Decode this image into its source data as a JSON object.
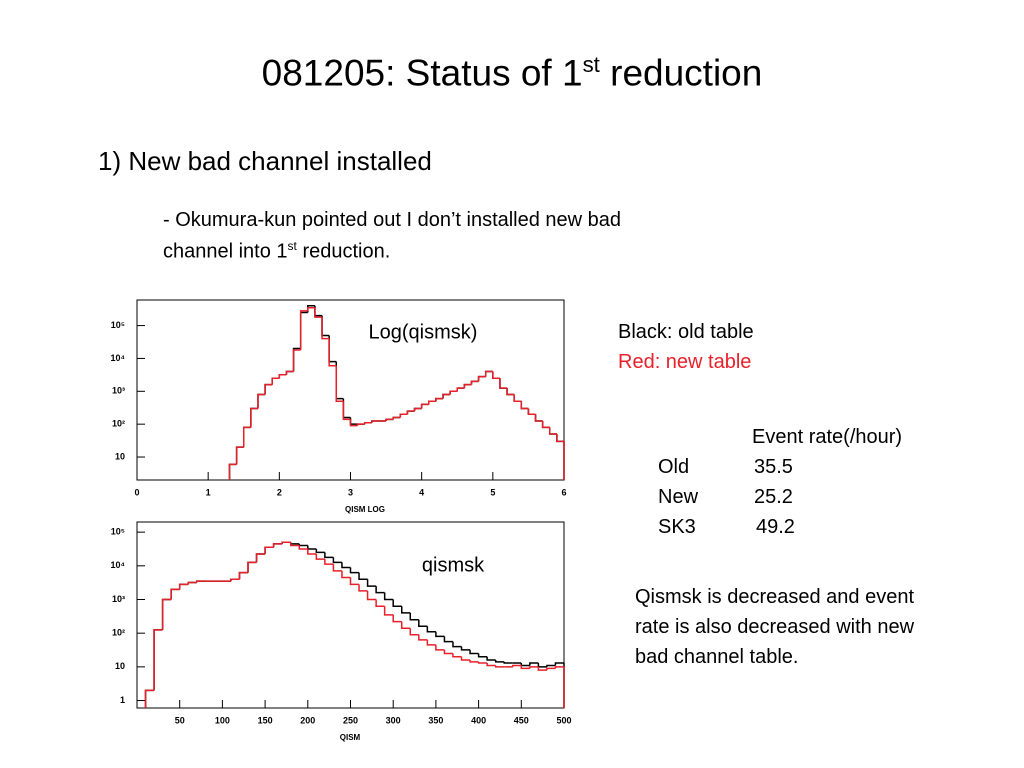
{
  "title": {
    "text": "081205: Status of 1",
    "sup": "st",
    "rest": " reduction"
  },
  "item": "1)  New bad channel installed",
  "note": {
    "line1": "- Okumura-kun pointed out  I don’t installed new bad",
    "line2": "channel into 1",
    "sup": "st",
    "rest": " reduction."
  },
  "rate_table": {
    "header": "Event rate(/hour)",
    "rows": [
      [
        "Old",
        35.5
      ],
      [
        "New",
        25.2
      ],
      [
        "SK3",
        49.2
      ]
    ]
  },
  "conclusion": [
    "Qismsk is decreased and event",
    "rate is also decreased with new",
    "bad channel table."
  ],
  "chart_data": [
    {
      "type": "histogram",
      "annotation": "Log(qismsk)",
      "x_label": "QISM LOG",
      "log_y": true,
      "xlim": [
        0,
        6
      ],
      "xticks": [
        0,
        1,
        2,
        3,
        4,
        5,
        6
      ],
      "ylim": [
        2,
        600000
      ],
      "yticks": [
        10,
        {
          "value": 100,
          "label": "10²"
        },
        {
          "value": 1000,
          "label": "10³"
        },
        {
          "value": 10000,
          "label": "10⁴"
        },
        {
          "value": 100000,
          "label": "10⁵"
        }
      ],
      "bins": [
        1.3,
        1.4,
        1.5,
        1.6,
        1.7,
        1.8,
        1.9,
        2.0,
        2.1,
        2.2,
        2.3,
        2.4,
        2.5,
        2.6,
        2.7,
        2.8,
        2.9,
        3.0,
        3.1,
        3.2,
        3.3,
        3.4,
        3.5,
        3.6,
        3.7,
        3.8,
        3.9,
        4.0,
        4.1,
        4.2,
        4.3,
        4.4,
        4.5,
        4.6,
        4.7,
        4.8,
        4.9,
        5.0,
        5.1,
        5.2,
        5.3,
        5.4,
        5.5,
        5.6,
        5.7,
        5.8,
        5.9,
        6.0
      ],
      "series": [
        {
          "name": "Black: old table",
          "color": "#000000",
          "values": [
            6,
            20,
            80,
            300,
            800,
            1600,
            2500,
            3200,
            4000,
            20000,
            250000,
            400000,
            200000,
            50000,
            8000,
            600,
            160,
            100,
            100,
            110,
            125,
            125,
            140,
            160,
            200,
            250,
            300,
            400,
            500,
            600,
            800,
            1000,
            1250,
            1600,
            2000,
            2800,
            4000,
            2500,
            1250,
            800,
            500,
            300,
            200,
            125,
            80,
            50,
            30
          ]
        },
        {
          "name": "Red: new table",
          "color": "#e8202a",
          "values": [
            6,
            20,
            80,
            300,
            800,
            1600,
            2500,
            3200,
            4000,
            18000,
            280000,
            350000,
            180000,
            40000,
            6000,
            500,
            140,
            90,
            100,
            110,
            125,
            125,
            140,
            160,
            200,
            250,
            300,
            400,
            500,
            600,
            800,
            1000,
            1250,
            1600,
            2000,
            2800,
            4000,
            2500,
            1250,
            800,
            500,
            300,
            200,
            125,
            80,
            50,
            30
          ]
        }
      ]
    },
    {
      "type": "histogram",
      "annotation": "qismsk",
      "x_label": "QISM",
      "log_y": true,
      "xlim": [
        0,
        500
      ],
      "xticks": [
        50,
        100,
        150,
        200,
        250,
        300,
        350,
        400,
        450,
        500
      ],
      "ylim": [
        0.6,
        200000
      ],
      "yticks": [
        1,
        10,
        {
          "value": 100,
          "label": "10²"
        },
        {
          "value": 1000,
          "label": "10³"
        },
        {
          "value": 10000,
          "label": "10⁴"
        },
        {
          "value": 100000,
          "label": "10⁵"
        }
      ],
      "bins": [
        10,
        20,
        30,
        40,
        50,
        60,
        70,
        80,
        90,
        100,
        110,
        120,
        130,
        140,
        150,
        160,
        170,
        180,
        190,
        200,
        210,
        220,
        230,
        240,
        250,
        260,
        270,
        280,
        290,
        300,
        310,
        320,
        330,
        340,
        350,
        360,
        370,
        380,
        390,
        400,
        410,
        420,
        430,
        440,
        450,
        460,
        470,
        480,
        490,
        500
      ],
      "series": [
        {
          "color": "#000000",
          "values": [
            2,
            125,
            1000,
            2000,
            2800,
            3200,
            3500,
            3500,
            3500,
            3500,
            4000,
            6300,
            12600,
            22400,
            35500,
            44700,
            50000,
            44700,
            40000,
            31600,
            25100,
            17800,
            12600,
            8900,
            6300,
            4000,
            2500,
            1600,
            1000,
            630,
            400,
            250,
            160,
            110,
            80,
            56,
            40,
            32,
            25,
            20,
            16,
            14,
            13,
            13,
            11,
            13,
            10,
            11,
            13
          ]
        },
        {
          "color": "#e8202a",
          "values": [
            2,
            125,
            1000,
            2000,
            2800,
            3200,
            3500,
            3500,
            3500,
            3500,
            4000,
            6300,
            12600,
            22400,
            35500,
            44700,
            50000,
            40000,
            31600,
            22400,
            15800,
            11200,
            7100,
            4500,
            2800,
            1800,
            1000,
            630,
            350,
            220,
            140,
            90,
            63,
            45,
            32,
            25,
            20,
            16,
            14,
            13,
            11,
            10,
            10,
            11,
            9,
            10,
            8,
            9,
            10
          ]
        }
      ]
    }
  ]
}
